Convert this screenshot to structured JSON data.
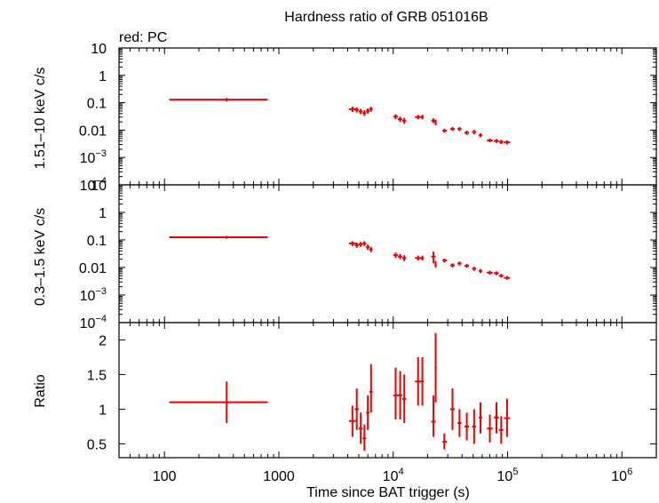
{
  "chart_data": {
    "type": "scatter",
    "title": "Hardness ratio of GRB 051016B",
    "annotation": "red: PC",
    "xlabel": "Time since BAT trigger (s)",
    "x_scale": "log",
    "xlim": [
      40,
      2000000
    ],
    "x_ticks": [
      {
        "v": 100,
        "label": "100"
      },
      {
        "v": 1000,
        "label": "1000"
      },
      {
        "v": 10000,
        "label": "10",
        "exp": "4"
      },
      {
        "v": 100000,
        "label": "10",
        "exp": "5"
      },
      {
        "v": 1000000,
        "label": "10",
        "exp": "6"
      }
    ],
    "panels": [
      {
        "name": "hard",
        "ylabel": "1.51–10 keV c/s",
        "y_scale": "log",
        "ylim": [
          0.0001,
          10
        ],
        "y_ticks": [
          {
            "v": 10,
            "label": "10"
          },
          {
            "v": 1,
            "label": "1"
          },
          {
            "v": 0.1,
            "label": "0.1"
          },
          {
            "v": 0.01,
            "label": "0.01"
          },
          {
            "v": 0.001,
            "label": "10",
            "exp": "−3"
          },
          {
            "v": 0.0001,
            "label": "10",
            "exp": "−4"
          }
        ],
        "points": [
          {
            "x": 350,
            "xlo": 110,
            "xhi": 800,
            "y": 0.13,
            "ylo": 0.11,
            "yhi": 0.15
          },
          {
            "x": 4400,
            "xlo": 4100,
            "xhi": 4700,
            "y": 0.058,
            "ylo": 0.046,
            "yhi": 0.072
          },
          {
            "x": 4800,
            "xlo": 4600,
            "xhi": 5000,
            "y": 0.055,
            "ylo": 0.044,
            "yhi": 0.068
          },
          {
            "x": 5200,
            "xlo": 5000,
            "xhi": 5400,
            "y": 0.048,
            "ylo": 0.038,
            "yhi": 0.06
          },
          {
            "x": 5600,
            "xlo": 5400,
            "xhi": 5800,
            "y": 0.042,
            "ylo": 0.033,
            "yhi": 0.053
          },
          {
            "x": 6000,
            "xlo": 5800,
            "xhi": 6200,
            "y": 0.05,
            "ylo": 0.04,
            "yhi": 0.062
          },
          {
            "x": 6400,
            "xlo": 6200,
            "xhi": 6600,
            "y": 0.058,
            "ylo": 0.047,
            "yhi": 0.071
          },
          {
            "x": 10500,
            "xlo": 10000,
            "xhi": 11000,
            "y": 0.031,
            "ylo": 0.025,
            "yhi": 0.038
          },
          {
            "x": 11500,
            "xlo": 11000,
            "xhi": 12000,
            "y": 0.025,
            "ylo": 0.02,
            "yhi": 0.031
          },
          {
            "x": 12500,
            "xlo": 12000,
            "xhi": 13000,
            "y": 0.022,
            "ylo": 0.017,
            "yhi": 0.028
          },
          {
            "x": 16500,
            "xlo": 15500,
            "xhi": 17500,
            "y": 0.03,
            "ylo": 0.025,
            "yhi": 0.036
          },
          {
            "x": 18000,
            "xlo": 17500,
            "xhi": 18500,
            "y": 0.03,
            "ylo": 0.025,
            "yhi": 0.036
          },
          {
            "x": 22500,
            "xlo": 21500,
            "xhi": 23500,
            "y": 0.022,
            "ylo": 0.018,
            "yhi": 0.027
          },
          {
            "x": 23500,
            "xlo": 23000,
            "xhi": 24000,
            "y": 0.019,
            "ylo": 0.015,
            "yhi": 0.024
          },
          {
            "x": 28000,
            "xlo": 27000,
            "xhi": 29500,
            "y": 0.0095,
            "ylo": 0.008,
            "yhi": 0.0113
          },
          {
            "x": 33000,
            "xlo": 31500,
            "xhi": 34500,
            "y": 0.011,
            "ylo": 0.0093,
            "yhi": 0.013
          },
          {
            "x": 38000,
            "xlo": 36500,
            "xhi": 39500,
            "y": 0.011,
            "ylo": 0.0093,
            "yhi": 0.013
          },
          {
            "x": 44000,
            "xlo": 42000,
            "xhi": 46000,
            "y": 0.008,
            "ylo": 0.0067,
            "yhi": 0.0095
          },
          {
            "x": 51000,
            "xlo": 49000,
            "xhi": 53000,
            "y": 0.0085,
            "ylo": 0.0071,
            "yhi": 0.0101
          },
          {
            "x": 58000,
            "xlo": 56000,
            "xhi": 60000,
            "y": 0.0065,
            "ylo": 0.0055,
            "yhi": 0.0077
          },
          {
            "x": 70000,
            "xlo": 66000,
            "xhi": 74000,
            "y": 0.0042,
            "ylo": 0.0036,
            "yhi": 0.0049
          },
          {
            "x": 80000,
            "xlo": 76000,
            "xhi": 84000,
            "y": 0.004,
            "ylo": 0.0034,
            "yhi": 0.0047
          },
          {
            "x": 88000,
            "xlo": 84000,
            "xhi": 92000,
            "y": 0.0037,
            "ylo": 0.0031,
            "yhi": 0.0044
          },
          {
            "x": 99000,
            "xlo": 93000,
            "xhi": 105000,
            "y": 0.0036,
            "ylo": 0.003,
            "yhi": 0.0042
          }
        ]
      },
      {
        "name": "soft",
        "ylabel": "0.3–1.5 keV c/s",
        "y_scale": "log",
        "ylim": [
          0.0001,
          10
        ],
        "y_ticks": [
          {
            "v": 10,
            "label": "10"
          },
          {
            "v": 1,
            "label": "1"
          },
          {
            "v": 0.1,
            "label": "0.1"
          },
          {
            "v": 0.01,
            "label": "0.01"
          },
          {
            "v": 0.001,
            "label": "10",
            "exp": "−3"
          },
          {
            "v": 0.0001,
            "label": "10",
            "exp": "−4"
          }
        ],
        "points": [
          {
            "x": 350,
            "xlo": 110,
            "xhi": 800,
            "y": 0.125,
            "ylo": 0.11,
            "yhi": 0.14
          },
          {
            "x": 4400,
            "xlo": 4100,
            "xhi": 4700,
            "y": 0.075,
            "ylo": 0.06,
            "yhi": 0.09
          },
          {
            "x": 4800,
            "xlo": 4600,
            "xhi": 5000,
            "y": 0.065,
            "ylo": 0.052,
            "yhi": 0.08
          },
          {
            "x": 5200,
            "xlo": 5000,
            "xhi": 5400,
            "y": 0.07,
            "ylo": 0.056,
            "yhi": 0.085
          },
          {
            "x": 5600,
            "xlo": 5400,
            "xhi": 5800,
            "y": 0.075,
            "ylo": 0.06,
            "yhi": 0.09
          },
          {
            "x": 6000,
            "xlo": 5800,
            "xhi": 6200,
            "y": 0.055,
            "ylo": 0.044,
            "yhi": 0.068
          },
          {
            "x": 6400,
            "xlo": 6200,
            "xhi": 6600,
            "y": 0.045,
            "ylo": 0.036,
            "yhi": 0.056
          },
          {
            "x": 10500,
            "xlo": 10000,
            "xhi": 11000,
            "y": 0.028,
            "ylo": 0.022,
            "yhi": 0.035
          },
          {
            "x": 11500,
            "xlo": 11000,
            "xhi": 12000,
            "y": 0.025,
            "ylo": 0.02,
            "yhi": 0.031
          },
          {
            "x": 12500,
            "xlo": 12000,
            "xhi": 13000,
            "y": 0.022,
            "ylo": 0.017,
            "yhi": 0.028
          },
          {
            "x": 16500,
            "xlo": 15500,
            "xhi": 17500,
            "y": 0.022,
            "ylo": 0.018,
            "yhi": 0.027
          },
          {
            "x": 18000,
            "xlo": 17500,
            "xhi": 18500,
            "y": 0.022,
            "ylo": 0.018,
            "yhi": 0.027
          },
          {
            "x": 22500,
            "xlo": 21500,
            "xhi": 23500,
            "y": 0.025,
            "ylo": 0.014,
            "yhi": 0.038
          },
          {
            "x": 23500,
            "xlo": 23000,
            "xhi": 24000,
            "y": 0.013,
            "ylo": 0.01,
            "yhi": 0.017
          },
          {
            "x": 28000,
            "xlo": 27000,
            "xhi": 29500,
            "y": 0.018,
            "ylo": 0.015,
            "yhi": 0.021
          },
          {
            "x": 33000,
            "xlo": 31500,
            "xhi": 34500,
            "y": 0.012,
            "ylo": 0.01,
            "yhi": 0.0142
          },
          {
            "x": 38000,
            "xlo": 36500,
            "xhi": 39500,
            "y": 0.014,
            "ylo": 0.0118,
            "yhi": 0.0165
          },
          {
            "x": 44000,
            "xlo": 42000,
            "xhi": 46000,
            "y": 0.0115,
            "ylo": 0.0097,
            "yhi": 0.0135
          },
          {
            "x": 51000,
            "xlo": 49000,
            "xhi": 53000,
            "y": 0.009,
            "ylo": 0.0076,
            "yhi": 0.0106
          },
          {
            "x": 58000,
            "xlo": 56000,
            "xhi": 60000,
            "y": 0.0075,
            "ylo": 0.0063,
            "yhi": 0.0088
          },
          {
            "x": 70000,
            "xlo": 66000,
            "xhi": 74000,
            "y": 0.0065,
            "ylo": 0.0055,
            "yhi": 0.0076
          },
          {
            "x": 80000,
            "xlo": 76000,
            "xhi": 84000,
            "y": 0.0062,
            "ylo": 0.0053,
            "yhi": 0.0072
          },
          {
            "x": 88000,
            "xlo": 84000,
            "xhi": 92000,
            "y": 0.005,
            "ylo": 0.0043,
            "yhi": 0.0058
          },
          {
            "x": 99000,
            "xlo": 93000,
            "xhi": 105000,
            "y": 0.0042,
            "ylo": 0.0036,
            "yhi": 0.0049
          }
        ]
      },
      {
        "name": "ratio",
        "ylabel": "Ratio",
        "y_scale": "linear",
        "ylim": [
          0.3,
          2.25
        ],
        "y_ticks": [
          {
            "v": 0.5,
            "label": "0.5"
          },
          {
            "v": 1,
            "label": "1"
          },
          {
            "v": 1.5,
            "label": "1.5"
          },
          {
            "v": 2,
            "label": "2"
          }
        ],
        "points": [
          {
            "x": 350,
            "xlo": 110,
            "xhi": 800,
            "y": 1.1,
            "ylo": 0.8,
            "yhi": 1.4
          },
          {
            "x": 4400,
            "xlo": 4100,
            "xhi": 4700,
            "y": 0.83,
            "ylo": 0.6,
            "yhi": 1.05
          },
          {
            "x": 4800,
            "xlo": 4600,
            "xhi": 5000,
            "y": 1.0,
            "ylo": 0.7,
            "yhi": 1.3
          },
          {
            "x": 5200,
            "xlo": 5000,
            "xhi": 5400,
            "y": 0.72,
            "ylo": 0.5,
            "yhi": 0.95
          },
          {
            "x": 5600,
            "xlo": 5400,
            "xhi": 5800,
            "y": 0.58,
            "ylo": 0.4,
            "yhi": 0.78
          },
          {
            "x": 6000,
            "xlo": 5800,
            "xhi": 6200,
            "y": 0.95,
            "ylo": 0.7,
            "yhi": 1.2
          },
          {
            "x": 6400,
            "xlo": 6200,
            "xhi": 6600,
            "y": 1.25,
            "ylo": 0.95,
            "yhi": 1.65
          },
          {
            "x": 10500,
            "xlo": 10000,
            "xhi": 11000,
            "y": 1.2,
            "ylo": 0.85,
            "yhi": 1.6
          },
          {
            "x": 11500,
            "xlo": 11000,
            "xhi": 12000,
            "y": 1.2,
            "ylo": 0.85,
            "yhi": 1.55
          },
          {
            "x": 12500,
            "xlo": 12000,
            "xhi": 13000,
            "y": 1.15,
            "ylo": 0.8,
            "yhi": 1.5
          },
          {
            "x": 16500,
            "xlo": 15500,
            "xhi": 17500,
            "y": 1.4,
            "ylo": 1.05,
            "yhi": 1.75
          },
          {
            "x": 18000,
            "xlo": 17500,
            "xhi": 18500,
            "y": 1.4,
            "ylo": 1.05,
            "yhi": 1.75
          },
          {
            "x": 22500,
            "xlo": 21500,
            "xhi": 23500,
            "y": 0.82,
            "ylo": 0.6,
            "yhi": 1.2
          },
          {
            "x": 23500,
            "xlo": 23000,
            "xhi": 24000,
            "y": 1.6,
            "ylo": 1.1,
            "yhi": 2.1
          },
          {
            "x": 28000,
            "xlo": 27000,
            "xhi": 29500,
            "y": 0.53,
            "ylo": 0.42,
            "yhi": 0.65
          },
          {
            "x": 33000,
            "xlo": 31500,
            "xhi": 34500,
            "y": 1.0,
            "ylo": 0.7,
            "yhi": 1.3
          },
          {
            "x": 38000,
            "xlo": 36500,
            "xhi": 39500,
            "y": 0.8,
            "ylo": 0.6,
            "yhi": 1.0
          },
          {
            "x": 44000,
            "xlo": 42000,
            "xhi": 46000,
            "y": 0.75,
            "ylo": 0.55,
            "yhi": 0.95
          },
          {
            "x": 51000,
            "xlo": 49000,
            "xhi": 53000,
            "y": 0.75,
            "ylo": 0.5,
            "yhi": 1.0
          },
          {
            "x": 58000,
            "xlo": 56000,
            "xhi": 60000,
            "y": 0.88,
            "ylo": 0.65,
            "yhi": 1.1
          },
          {
            "x": 70000,
            "xlo": 66000,
            "xhi": 74000,
            "y": 0.72,
            "ylo": 0.52,
            "yhi": 0.92
          },
          {
            "x": 80000,
            "xlo": 76000,
            "xhi": 84000,
            "y": 0.88,
            "ylo": 0.65,
            "yhi": 1.1
          },
          {
            "x": 88000,
            "xlo": 84000,
            "xhi": 92000,
            "y": 0.7,
            "ylo": 0.5,
            "yhi": 0.9
          },
          {
            "x": 99000,
            "xlo": 93000,
            "xhi": 105000,
            "y": 0.87,
            "ylo": 0.6,
            "yhi": 1.15
          }
        ]
      }
    ],
    "colors": {
      "data": "#ee0000",
      "axes": "#000000"
    },
    "grid": false
  }
}
